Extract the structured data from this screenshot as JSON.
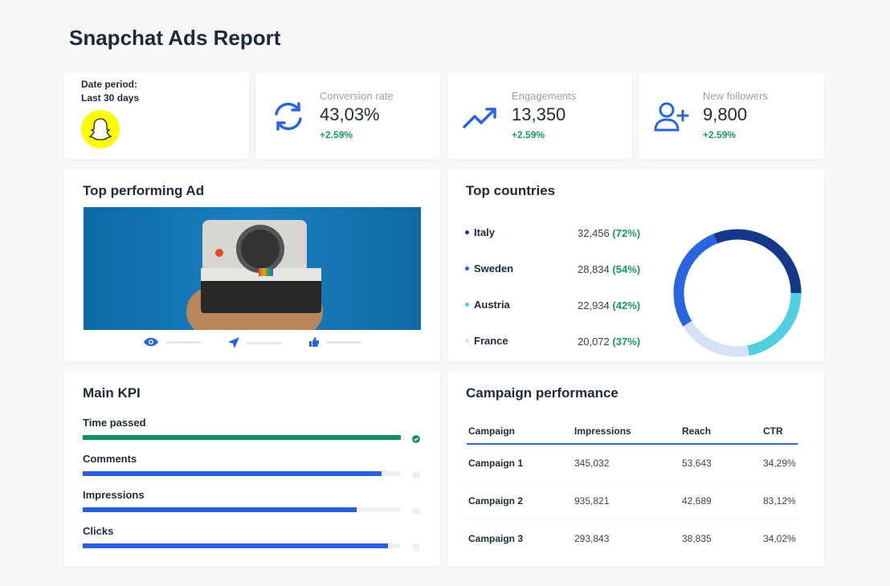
{
  "title": "Snapchat Ads Report",
  "date_period": {
    "label": "Date period:",
    "value": "Last 30 days",
    "logo": "snapchat-ghost-logo",
    "logo_color": "#FFFC00"
  },
  "stats": [
    {
      "label": "Conversion rate",
      "value": "43,03%",
      "delta": "+2.59%",
      "icon": "refresh-icon"
    },
    {
      "label": "Engagements",
      "value": "13,350",
      "delta": "+2.59%",
      "icon": "trending-up-icon"
    },
    {
      "label": "New followers",
      "value": "9,800",
      "delta": "+2.59%",
      "icon": "user-plus-icon"
    }
  ],
  "top_ad": {
    "title": "Top performing Ad",
    "metric_icons": [
      "eye-icon",
      "send-icon",
      "thumbs-up-icon"
    ]
  },
  "top_countries": {
    "title": "Top countries",
    "items": [
      {
        "name": "Italy",
        "value": "32,456",
        "pct": "(72%)",
        "num": 32456,
        "color": "#16388a"
      },
      {
        "name": "Sweden",
        "value": "28,834",
        "pct": "(54%)",
        "num": 28834,
        "color": "#2a64e0"
      },
      {
        "name": "Austria",
        "value": "22,934",
        "pct": "(42%)",
        "num": 22934,
        "color": "#4fcfdf"
      },
      {
        "name": "France",
        "value": "20,072",
        "pct": "(37%)",
        "num": 20072,
        "color": "#d6e0f6"
      }
    ]
  },
  "main_kpi": {
    "title": "Main KPI",
    "items": [
      {
        "label": "Time passed",
        "progress": 100,
        "color": "#0f9460",
        "done": true
      },
      {
        "label": "Comments",
        "progress": 94,
        "color": "#2a5fe0",
        "done": false
      },
      {
        "label": "Impressions",
        "progress": 86,
        "color": "#2a5fe0",
        "done": false
      },
      {
        "label": "Clicks",
        "progress": 96,
        "color": "#2a5fe0",
        "done": false
      }
    ]
  },
  "campaign": {
    "title": "Campaign performance",
    "headers": [
      "Campaign",
      "Impressions",
      "Reach",
      "CTR"
    ],
    "rows": [
      [
        "Campaign 1",
        "345,032",
        "53,643",
        "34,29%"
      ],
      [
        "Campaign 2",
        "935,821",
        "42,689",
        "83,12%"
      ],
      [
        "Campaign 3",
        "293,843",
        "38,835",
        "34,02%"
      ]
    ]
  },
  "colors": {
    "accent": "#2a64e0",
    "positive": "#1a9a62"
  }
}
